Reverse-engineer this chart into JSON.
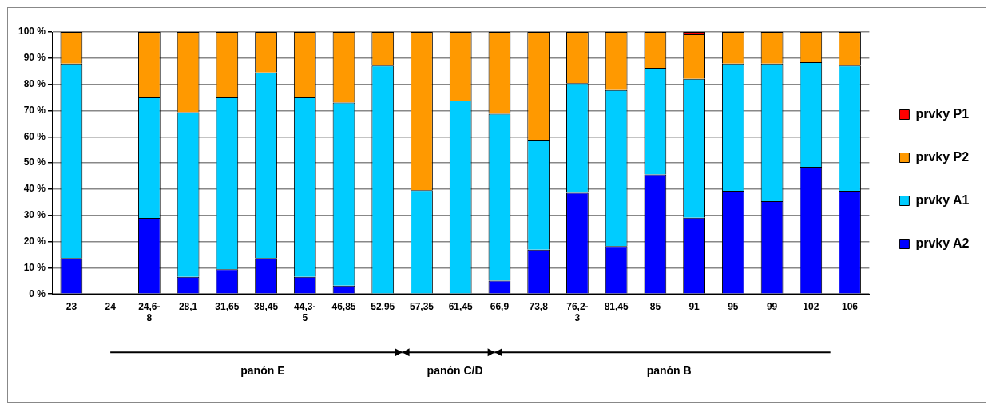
{
  "chart_data": {
    "type": "bar",
    "stacked": true,
    "categories": [
      "23",
      "24",
      "24,6-8",
      "28,1",
      "31,65",
      "38,45",
      "44,3-5",
      "46,85",
      "52,95",
      "57,35",
      "61,45",
      "66,9",
      "73,8",
      "76,2-3",
      "81,45",
      "85",
      "91",
      "95",
      "99",
      "102",
      "106"
    ],
    "series": [
      {
        "name": "prvky A2",
        "color": "#0000ff",
        "values": [
          13.7,
          null,
          29.0,
          6.5,
          9.4,
          13.7,
          6.5,
          3.2,
          0,
          0,
          0,
          5.1,
          16.9,
          38.6,
          18.3,
          45.6,
          29.1,
          39.4,
          35.4,
          48.5,
          39.4
        ]
      },
      {
        "name": "prvky A1",
        "color": "#00ccff",
        "values": [
          74.2,
          null,
          46.0,
          62.9,
          65.6,
          70.8,
          68.5,
          69.8,
          87.1,
          39.6,
          73.8,
          63.7,
          42.0,
          41.8,
          59.5,
          40.7,
          53.0,
          48.5,
          52.5,
          39.9,
          47.7
        ]
      },
      {
        "name": "prvky P2",
        "color": "#ff9900",
        "values": [
          12.1,
          null,
          25.0,
          30.6,
          25.0,
          15.5,
          25.0,
          27.0,
          12.9,
          60.4,
          26.2,
          31.2,
          41.1,
          19.6,
          22.2,
          13.7,
          17.0,
          12.1,
          12.1,
          11.6,
          12.9
        ]
      },
      {
        "name": "prvky P1",
        "color": "#ff0000",
        "values": [
          0,
          null,
          0,
          0,
          0,
          0,
          0,
          0,
          0,
          0,
          0,
          0,
          0,
          0,
          0,
          0,
          0.9,
          0,
          0,
          0,
          0
        ]
      }
    ],
    "ylim": [
      0,
      100
    ],
    "yticks": [
      {
        "value": 0,
        "label": "0 %"
      },
      {
        "value": 10,
        "label": "10 %"
      },
      {
        "value": 20,
        "label": "20 %"
      },
      {
        "value": 30,
        "label": "30 %"
      },
      {
        "value": 40,
        "label": "40 %"
      },
      {
        "value": 50,
        "label": "50 %"
      },
      {
        "value": 60,
        "label": "60 %"
      },
      {
        "value": 70,
        "label": "70 %"
      },
      {
        "value": 80,
        "label": "80 %"
      },
      {
        "value": 90,
        "label": "90 %"
      },
      {
        "value": 100,
        "label": "100 %"
      }
    ],
    "grid": "y",
    "legend": "right",
    "annotations": [
      "panón E",
      "panón C/D",
      "panón B"
    ]
  }
}
